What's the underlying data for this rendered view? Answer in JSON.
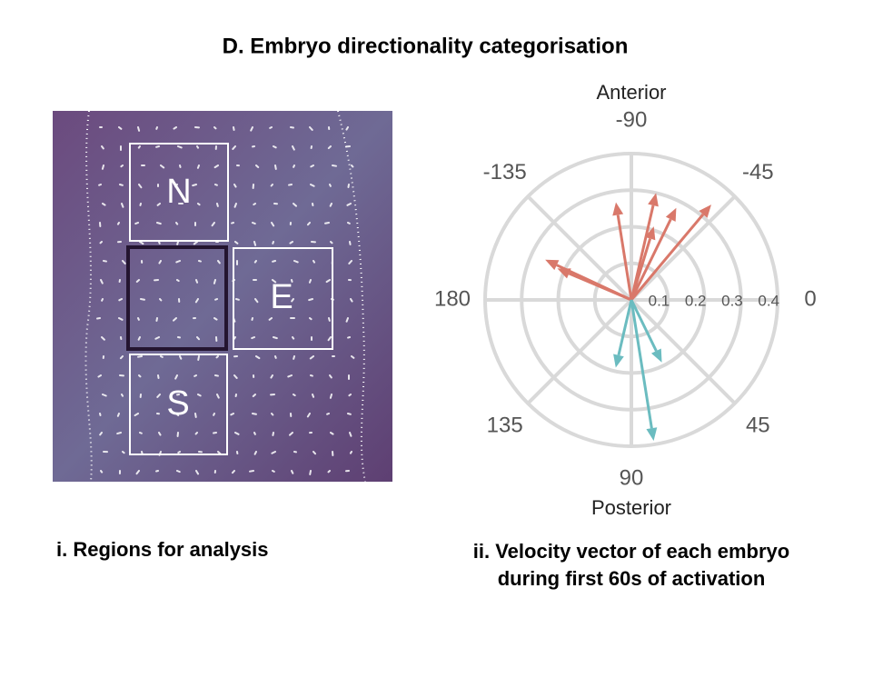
{
  "title": "D. Embryo directionality categorisation",
  "panel_i": {
    "caption": "i.  Regions for analysis",
    "regions": [
      "N",
      "E",
      "S"
    ]
  },
  "chart_data": {
    "type": "polar-vector",
    "caption": "ii. Velocity vector of each embryo during first 60s of activation",
    "annotations": {
      "top": "Anterior",
      "bottom": "Posterior"
    },
    "rlim": [
      0,
      0.4
    ],
    "rticks": [
      0.1,
      0.2,
      0.3,
      0.4
    ],
    "thetaticks": [
      -90,
      -45,
      0,
      45,
      90,
      135,
      180,
      -135
    ],
    "grid": true,
    "series": [
      {
        "color": "#d9786a",
        "theta": [
          -50,
          -77,
          -64,
          -73,
          -99,
          -155,
          -157
        ],
        "r": [
          0.34,
          0.3,
          0.28,
          0.21,
          0.27,
          0.26,
          0.22
        ]
      },
      {
        "color": "#6bbcc0",
        "theta": [
          81,
          64,
          103
        ],
        "r": [
          0.39,
          0.19,
          0.19
        ]
      }
    ]
  }
}
